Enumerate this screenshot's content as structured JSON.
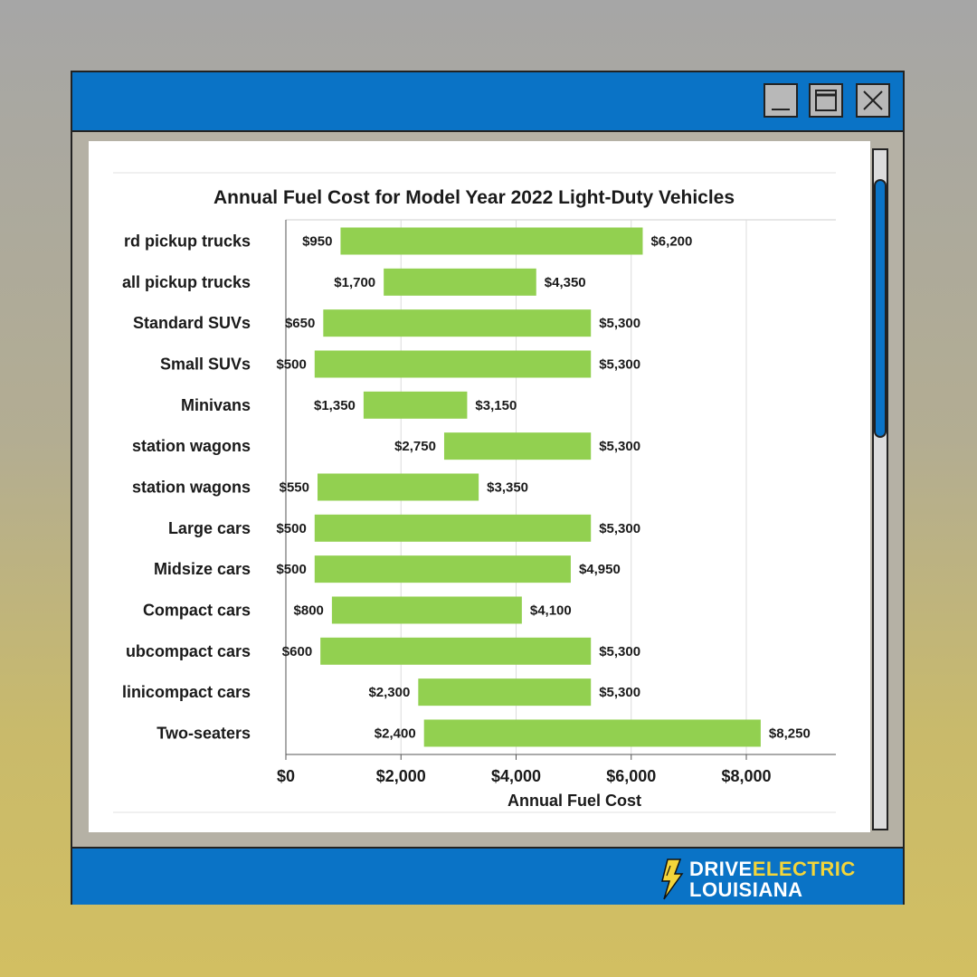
{
  "window": {
    "buttons": [
      "minimize",
      "maximize",
      "close"
    ],
    "colors": {
      "frame": "#0a73c6",
      "bar": "#92d050",
      "scroll_thumb": "#0a73c6"
    }
  },
  "logo": {
    "word1": "DRIVE",
    "word2": "ELECTRIC",
    "word3": "LOUISIANA",
    "icon": "lightning-bolt-icon"
  },
  "chart_data": {
    "type": "bar",
    "orientation": "horizontal",
    "style": "floating-range",
    "title": "Annual Fuel Cost for Model Year 2022 Light-Duty Vehicles",
    "xlabel": "Annual Fuel Cost",
    "ylabel": "",
    "xlim": [
      0,
      9000
    ],
    "grid": true,
    "categories": [
      "rd pickup trucks",
      "all pickup trucks",
      "Standard SUVs",
      "Small SUVs",
      "Minivans",
      "station wagons",
      "station wagons",
      "Large cars",
      "Midsize cars",
      "Compact cars",
      "ubcompact cars",
      "linicompact cars",
      "Two-seaters"
    ],
    "low": [
      950,
      1700,
      650,
      500,
      1350,
      2750,
      550,
      500,
      500,
      800,
      600,
      2300,
      2400
    ],
    "high": [
      6200,
      4350,
      5300,
      5300,
      3150,
      5300,
      3350,
      5300,
      4950,
      4100,
      5300,
      5300,
      8250
    ],
    "low_labels": [
      "$950",
      "$1,700",
      "$650",
      "$500",
      "$1,350",
      "$2,750",
      "$550",
      "$500",
      "$500",
      "$800",
      "$600",
      "$2,300",
      "$2,400"
    ],
    "high_labels": [
      "$6,200",
      "$4,350",
      "$5,300",
      "$5,300",
      "$3,150",
      "$5,300",
      "$3,350",
      "$5,300",
      "$4,950",
      "$4,100",
      "$5,300",
      "$5,300",
      "$8,250"
    ],
    "ticks": [
      0,
      2000,
      4000,
      6000,
      8000,
      10000
    ],
    "tick_labels": [
      "$0",
      "$2,000",
      "$4,000",
      "$6,000",
      "$8,000",
      "$"
    ]
  }
}
